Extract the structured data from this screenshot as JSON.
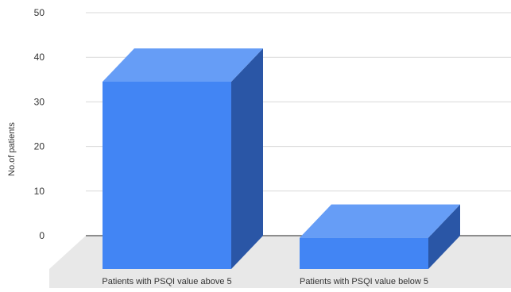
{
  "chart_data": {
    "type": "bar",
    "style": "3d",
    "categories": [
      "Patients with PSQI value above 5",
      "Patients with PSQI value below 5"
    ],
    "values": [
      42,
      7
    ],
    "ylabel": "No.of patients",
    "xlabel": "",
    "ylim": [
      0,
      50
    ],
    "yticks": [
      "0",
      "10",
      "20",
      "30",
      "40",
      "50"
    ],
    "grid": true,
    "legend": "none",
    "colors": {
      "bar_front": "#4285f4",
      "bar_top": "#669df6",
      "bar_side": "#2a56a6",
      "floor": "#e8e8e8",
      "gridline": "#d9d9d9",
      "baseline": "#4d4d4d",
      "text": "#333333"
    }
  }
}
